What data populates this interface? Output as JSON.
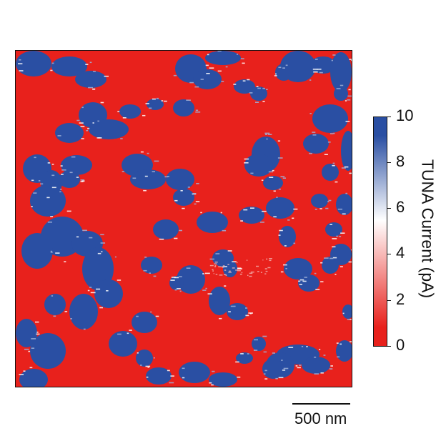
{
  "figure": {
    "colorbar": {
      "title": "TUNA Current (pA)",
      "range": [
        0,
        10
      ],
      "ticks": [
        "0",
        "2",
        "4",
        "6",
        "8",
        "10"
      ],
      "colors": {
        "low": "#e8211c",
        "mid": "#ffffff",
        "high": "#2a4fa3"
      }
    },
    "scale_bar": {
      "label": "500 nm"
    },
    "map": {
      "background_color": "#e8211c",
      "domain_color": "#2a4fa3",
      "speckle_color": "#ffffff"
    }
  }
}
